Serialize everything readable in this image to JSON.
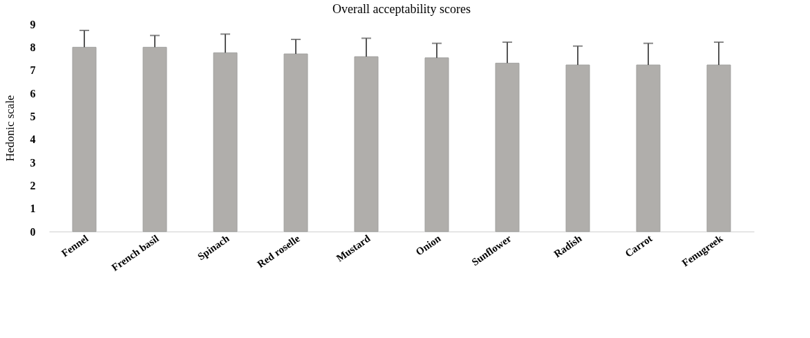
{
  "chart_data": {
    "type": "bar",
    "title": "Overall acceptability scores",
    "ylabel": "Hedonic scale",
    "categories": [
      "Fennel",
      "French basil",
      "Spinach",
      "Red roselle",
      "Mustard",
      "Onion",
      "Sunflower",
      "Radish",
      "Carrot",
      "Fenugreek"
    ],
    "values": [
      8.0,
      8.0,
      7.76,
      7.71,
      7.59,
      7.54,
      7.31,
      7.23,
      7.23,
      7.23
    ],
    "errors": [
      0.73,
      0.51,
      0.81,
      0.63,
      0.8,
      0.63,
      0.91,
      0.82,
      0.94,
      0.99
    ],
    "color": "#b0aeab",
    "ylim": [
      0,
      9
    ],
    "yticks": [
      0,
      1,
      2,
      3,
      4,
      5,
      6,
      7,
      8,
      9
    ],
    "grid": false
  }
}
